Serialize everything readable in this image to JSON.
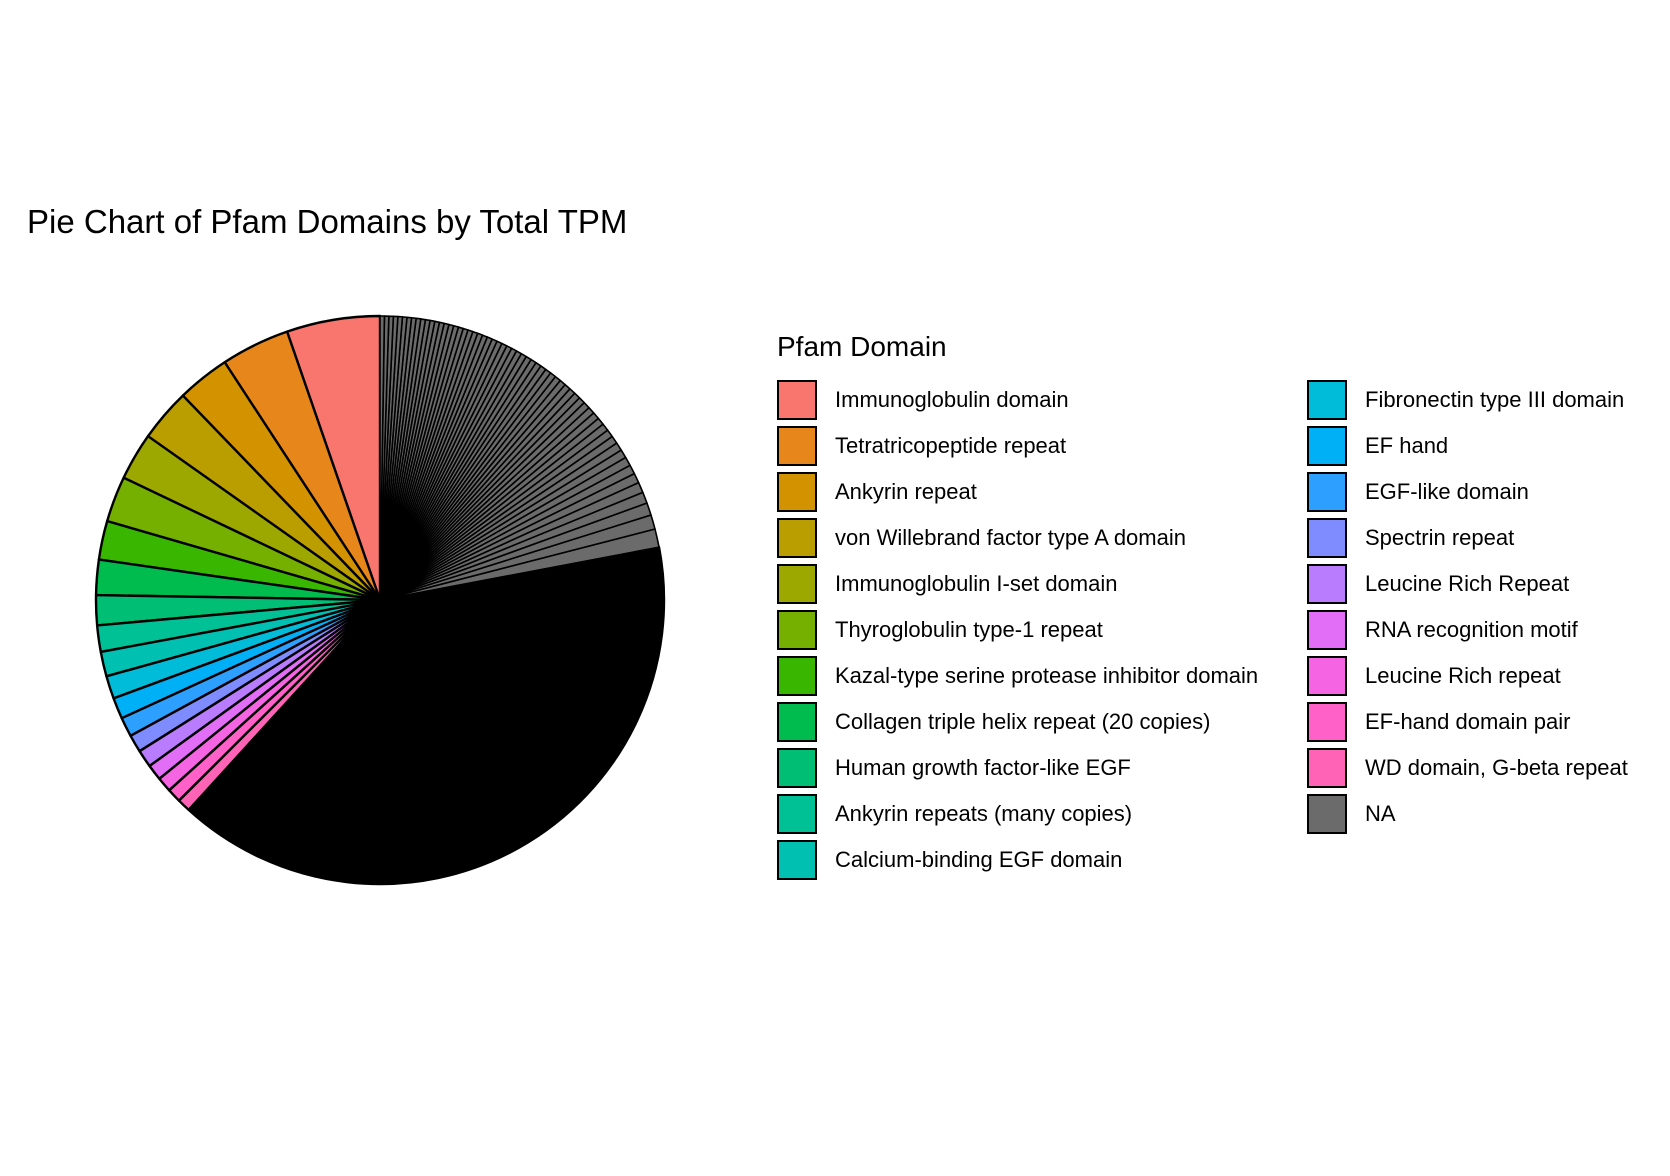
{
  "chart_data": {
    "type": "pie",
    "title": "Pie Chart of Pfam Domains by Total TPM",
    "legend_title": "Pfam Domain",
    "legend_placement": "right",
    "start_angle_deg": 0,
    "direction": "counterclockwise",
    "slice_border_color": "#000000",
    "slices": [
      {
        "name": "Immunoglobulin domain",
        "value": 5.3,
        "color": "#F8766D"
      },
      {
        "name": "Tetratricopeptide repeat",
        "value": 3.9,
        "color": "#E7861B"
      },
      {
        "name": "Ankyrin repeat",
        "value": 3.0,
        "color": "#D39200"
      },
      {
        "name": "von Willebrand factor type A domain",
        "value": 3.0,
        "color": "#BA9E00"
      },
      {
        "name": "Immunoglobulin I-set domain",
        "value": 2.7,
        "color": "#9CA700"
      },
      {
        "name": "Thyroglobulin type-1 repeat",
        "value": 2.6,
        "color": "#75AF00"
      },
      {
        "name": "Kazal-type serine protease inhibitor domain",
        "value": 2.2,
        "color": "#39B600"
      },
      {
        "name": "Collagen triple helix repeat (20 copies)",
        "value": 2.0,
        "color": "#00BB4E"
      },
      {
        "name": "Human growth factor-like EGF",
        "value": 1.7,
        "color": "#00BE74"
      },
      {
        "name": "Ankyrin repeats (many copies)",
        "value": 1.5,
        "color": "#00C096"
      },
      {
        "name": "Calcium-binding EGF domain",
        "value": 1.4,
        "color": "#00C0B2"
      },
      {
        "name": "Fibronectin type III domain",
        "value": 1.3,
        "color": "#00BCD8"
      },
      {
        "name": "EF hand",
        "value": 1.2,
        "color": "#00B0F6"
      },
      {
        "name": "EGF-like domain",
        "value": 1.1,
        "color": "#2DA0FF"
      },
      {
        "name": "Spectrin repeat",
        "value": 1.0,
        "color": "#7F8CFF"
      },
      {
        "name": "Leucine Rich Repeat",
        "value": 1.0,
        "color": "#BA7CFF"
      },
      {
        "name": "RNA recognition motif",
        "value": 0.9,
        "color": "#E26EF7"
      },
      {
        "name": "Leucine Rich repeat",
        "value": 0.85,
        "color": "#F565E3"
      },
      {
        "name": "EF-hand domain pair",
        "value": 0.8,
        "color": "#FF61C9"
      },
      {
        "name": "WD domain, G-beta repeat",
        "value": 0.75,
        "color": "#FF63B6"
      },
      {
        "name": "",
        "value": 39.7,
        "color": "#000000"
      },
      {
        "name": "NA",
        "value": 22.0,
        "color": "#6B6B6B"
      }
    ],
    "na_subslice_count": 60
  }
}
